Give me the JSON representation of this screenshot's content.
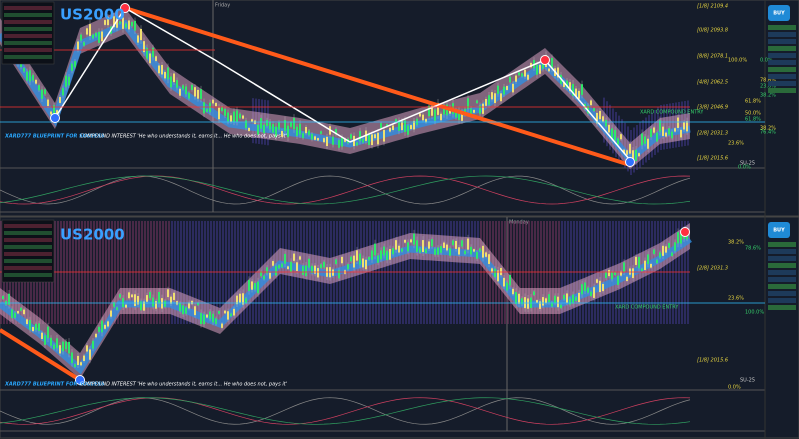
{
  "top": {
    "symbol": "US2000",
    "day": "Friday",
    "signal": "BUY",
    "entry": "XARD COMPOUND ENTRY",
    "footer_brand": "XARD777 BLUEPRINT FOR SUCCESS",
    "footer_quote": "COMPOUND INTEREST 'He who understands it, earns it... He who does not, pays it'",
    "region": "SU-25",
    "levels": [
      "[1/8] 2109.4",
      "[0/8] 2093.8",
      "[8/8] 2078.1",
      "[4/8] 2062.5",
      "[3/8] 2046.9",
      "[2/8] 2031.3",
      "[1/8] 2015.6"
    ],
    "fibs": [
      "100.0%",
      "0.0%",
      "78.6%",
      "23.6%",
      "61.8%",
      "38.2%",
      "50.0%",
      "61.8%",
      "38.2%",
      "76.4%",
      "23.6%",
      "0.0%"
    ]
  },
  "bottom": {
    "symbol": "US2000",
    "day": "Monday",
    "signal": "BUY",
    "entry": "XARD COMPOUND ENTRY",
    "footer_brand": "XARD777 BLUEPRINT FOR SUCCESS",
    "footer_quote": "COMPOUND INTEREST 'He who understands it, earns it... He who does not, pays it'",
    "region": "SU-25",
    "levels": [
      "[2/8] 2031.3",
      "[1/8] 2015.6"
    ],
    "fibs": [
      "38.2%",
      "78.6%",
      "23.6%",
      "100.0%",
      "0.0%"
    ]
  }
}
